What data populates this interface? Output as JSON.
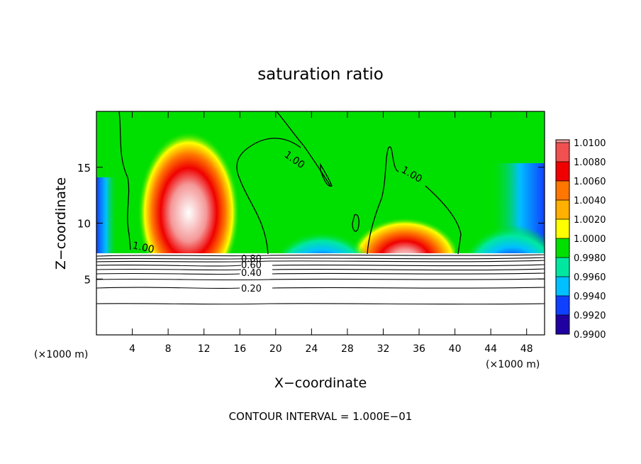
{
  "chart_data": {
    "type": "heatmap",
    "title": "saturation ratio",
    "xlabel": "X−coordinate",
    "ylabel": "Z−coordinate",
    "x_unit_left": "(×1000 m)",
    "x_unit_right": "(×1000 m)",
    "xlim": [
      0,
      50
    ],
    "ylim": [
      0,
      20
    ],
    "xticks": [
      4,
      8,
      12,
      16,
      20,
      24,
      28,
      32,
      36,
      40,
      44,
      48
    ],
    "yticks": [
      5,
      10,
      15
    ],
    "footer": "CONTOUR INTERVAL = 1.000E−01",
    "colorbar": {
      "labels": [
        "1.0100",
        "1.0080",
        "1.0060",
        "1.0040",
        "1.0020",
        "1.0000",
        "0.9980",
        "0.9960",
        "0.9940",
        "0.9920",
        "0.9900"
      ],
      "colors": [
        "#f49898",
        "#f05050",
        "#f00000",
        "#ff7700",
        "#ffb000",
        "#ffff00",
        "#00e000",
        "#00e8a0",
        "#00c0ff",
        "#1040ff",
        "#2000a0",
        "#6a0090"
      ]
    },
    "contour_labels": [
      {
        "text": "1.00",
        "x": 26.0,
        "z": 15.0
      },
      {
        "text": "1.00",
        "x": 36.0,
        "z": 14.5
      },
      {
        "text": "1.00",
        "x": 5.4,
        "z": 7.7
      },
      {
        "text": "0.80",
        "x": 17.3,
        "z": 6.7
      },
      {
        "text": "0.60",
        "x": 17.3,
        "z": 6.1
      },
      {
        "text": "0.40",
        "x": 17.3,
        "z": 5.6
      },
      {
        "text": "0.20",
        "x": 17.3,
        "z": 4.1
      }
    ],
    "cloud_cores": [
      {
        "x": 10.5,
        "z": 13.5,
        "halfwidth": 4.5,
        "peak": 1.0095
      },
      {
        "x": 34.5,
        "z": 9.0,
        "halfwidth": 4.0,
        "peak": 1.0065
      },
      {
        "x": 25.0,
        "z": 8.5,
        "halfwidth": 2.0,
        "peak": 0.9925
      },
      {
        "x": 48.0,
        "z": 8.2,
        "halfwidth": 3.0,
        "peak": 0.992
      }
    ]
  }
}
